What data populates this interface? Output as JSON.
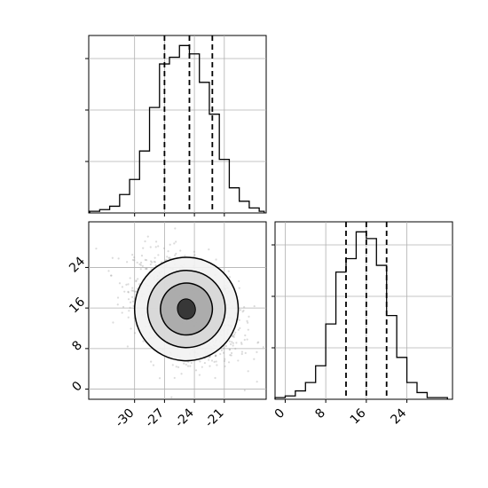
{
  "chart_data": [
    {
      "panel": "top-left",
      "type": "histogram",
      "bin_edges": [
        -34.5,
        -33.5,
        -32.5,
        -31.5,
        -30.5,
        -29.5,
        -28.5,
        -27.5,
        -26.5,
        -25.5,
        -24.5,
        -23.5,
        -22.5,
        -21.5,
        -20.5,
        -19.5,
        -18.5,
        -17.5,
        -17.0
      ],
      "counts": [
        0.01,
        0.02,
        0.04,
        0.11,
        0.2,
        0.37,
        0.63,
        0.89,
        0.93,
        1.0,
        0.95,
        0.78,
        0.59,
        0.32,
        0.15,
        0.07,
        0.03,
        0.01
      ],
      "quantiles": [
        -27.0,
        -24.5,
        -22.2
      ],
      "xlim": [
        -34.6,
        -16.8
      ],
      "grid": true,
      "ytick_count": 3
    },
    {
      "panel": "bottom-left",
      "type": "contour",
      "xlim": [
        -34.6,
        -16.8
      ],
      "ylim": [
        -2,
        33
      ],
      "center": [
        -24.8,
        15.8
      ],
      "contour_levels": [
        {
          "rx": 5.2,
          "ry": 10.2,
          "rot": -18
        },
        {
          "rx": 3.9,
          "ry": 7.6,
          "rot": -20
        },
        {
          "rx": 2.6,
          "ry": 5.1,
          "rot": -22
        },
        {
          "rx": 0.9,
          "ry": 2.0,
          "rot": -10
        }
      ],
      "xticks": [
        -30,
        -27,
        -24,
        -21
      ],
      "yticks": [
        0,
        8,
        16,
        24
      ],
      "grid": true
    },
    {
      "panel": "bottom-right",
      "type": "histogram",
      "bin_edges": [
        -2,
        0,
        2,
        4,
        6,
        8,
        10,
        12,
        14,
        16,
        18,
        20,
        22,
        24,
        26,
        28,
        30,
        32
      ],
      "counts": [
        0.01,
        0.02,
        0.05,
        0.1,
        0.2,
        0.45,
        0.76,
        0.84,
        1.0,
        0.96,
        0.8,
        0.5,
        0.25,
        0.1,
        0.04,
        0.01,
        0.01
      ],
      "quantiles": [
        12.0,
        16.0,
        20.0
      ],
      "xlim": [
        -2,
        33
      ],
      "xticks": [
        0,
        8,
        16,
        24
      ],
      "grid": true,
      "ytick_count": 3
    }
  ]
}
